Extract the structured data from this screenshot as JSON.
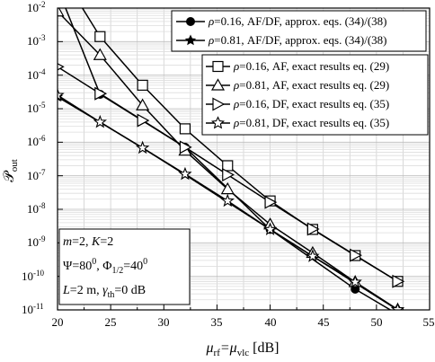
{
  "chart_data": {
    "type": "line",
    "xlabel": "μ",
    "xlabel_sub1": "rf",
    "xlabel_eq": "=μ",
    "xlabel_sub2": "vlc",
    "xlabel_unit": " [dB]",
    "ylabel": "𝒫",
    "ylabel_sub": "out",
    "xlim": [
      20,
      55
    ],
    "ylim_log10": [
      -11,
      -2
    ],
    "y_scale": "log",
    "grid": true,
    "x_ticks": [
      "20",
      "25",
      "30",
      "35",
      "40",
      "45",
      "50",
      "55"
    ],
    "y_ticks": [
      {
        "base": "10",
        "exp": "-2"
      },
      {
        "base": "10",
        "exp": "-3"
      },
      {
        "base": "10",
        "exp": "-4"
      },
      {
        "base": "10",
        "exp": "-5"
      },
      {
        "base": "10",
        "exp": "-6"
      },
      {
        "base": "10",
        "exp": "-7"
      },
      {
        "base": "10",
        "exp": "-8"
      },
      {
        "base": "10",
        "exp": "-9"
      },
      {
        "base": "10",
        "exp": "-10"
      },
      {
        "base": "10",
        "exp": "-11"
      }
    ],
    "series": [
      {
        "name": "ρ=0.16, AF/DF, approx. eqs. (34)/(38)",
        "marker": "filled-circle",
        "x": [
          20,
          24,
          32,
          40,
          48,
          52
        ],
        "log10_y": [
          -1.4,
          -4.57,
          -6.15,
          -8.6,
          -10.38,
          -11.13
        ]
      },
      {
        "name": "ρ=0.81, AF/DF, approx. eqs. (34)/(38)",
        "marker": "filled-star",
        "x": [
          20,
          24,
          28,
          32,
          40,
          48,
          52
        ],
        "log10_y": [
          -4.65,
          -5.4,
          -6.17,
          -6.97,
          -8.6,
          -10.2,
          -11.0
        ]
      },
      {
        "name": "ρ=0.16, AF, exact results eq. (29)",
        "marker": "open-square",
        "x": [
          20,
          24,
          28,
          32,
          36,
          40,
          44,
          48,
          52
        ],
        "log10_y": [
          -0.8,
          -2.85,
          -4.3,
          -5.6,
          -6.7,
          -7.75,
          -8.6,
          -9.38,
          -10.15
        ]
      },
      {
        "name": "ρ=0.81, AF, exact results eq. (29)",
        "marker": "open-triangle-up",
        "x": [
          20,
          24,
          28,
          32,
          36,
          40,
          44,
          48,
          52
        ],
        "log10_y": [
          -2.1,
          -3.4,
          -4.9,
          -6.25,
          -7.4,
          -8.45,
          -9.3,
          -10.17,
          -10.99
        ]
      },
      {
        "name": "ρ=0.16, DF, exact results eq. (35)",
        "marker": "open-triangle-right",
        "x": [
          20,
          24,
          28,
          32,
          36,
          40,
          44,
          48,
          52
        ],
        "log10_y": [
          -3.75,
          -4.55,
          -5.35,
          -6.15,
          -6.97,
          -7.79,
          -8.59,
          -9.37,
          -10.15
        ]
      },
      {
        "name": "ρ=0.81, DF, exact results eq. (35)",
        "marker": "open-star",
        "x": [
          20,
          24,
          28,
          32,
          36,
          40,
          44,
          48,
          52
        ],
        "log10_y": [
          -4.6,
          -5.4,
          -6.17,
          -6.95,
          -7.75,
          -8.6,
          -9.4,
          -10.17,
          -10.99
        ]
      }
    ],
    "legend1": [
      {
        "rho": "ρ",
        "rest": "=0.16, AF/DF, approx. eqs. (34)/(38)"
      },
      {
        "rho": "ρ",
        "rest": "=0.81, AF/DF, approx. eqs. (34)/(38)"
      }
    ],
    "legend2": [
      {
        "rho": "ρ",
        "rest": "=0.16, AF, exact results eq. (29)"
      },
      {
        "rho": "ρ",
        "rest": "=0.81, AF, exact results eq. (29)"
      },
      {
        "rho": "ρ",
        "rest": "=0.16, DF, exact results eq. (35)"
      },
      {
        "rho": "ρ",
        "rest": "=0.81, DF, exact results eq. (35)"
      }
    ],
    "annotation": {
      "line1": {
        "m": "m",
        "p1": "=2, ",
        "K": "K",
        "p2": "=2"
      },
      "line2": {
        "a": "Ψ=80",
        "a_sup": "0",
        "b": ", Φ",
        "b_sub": "1/2",
        "c": "=40",
        "c_sup": "0"
      },
      "line3": {
        "L": "L",
        "p1": "=2 m, ",
        "g": "γ",
        "g_sub": "th",
        "p2": "=0 dB"
      }
    }
  }
}
